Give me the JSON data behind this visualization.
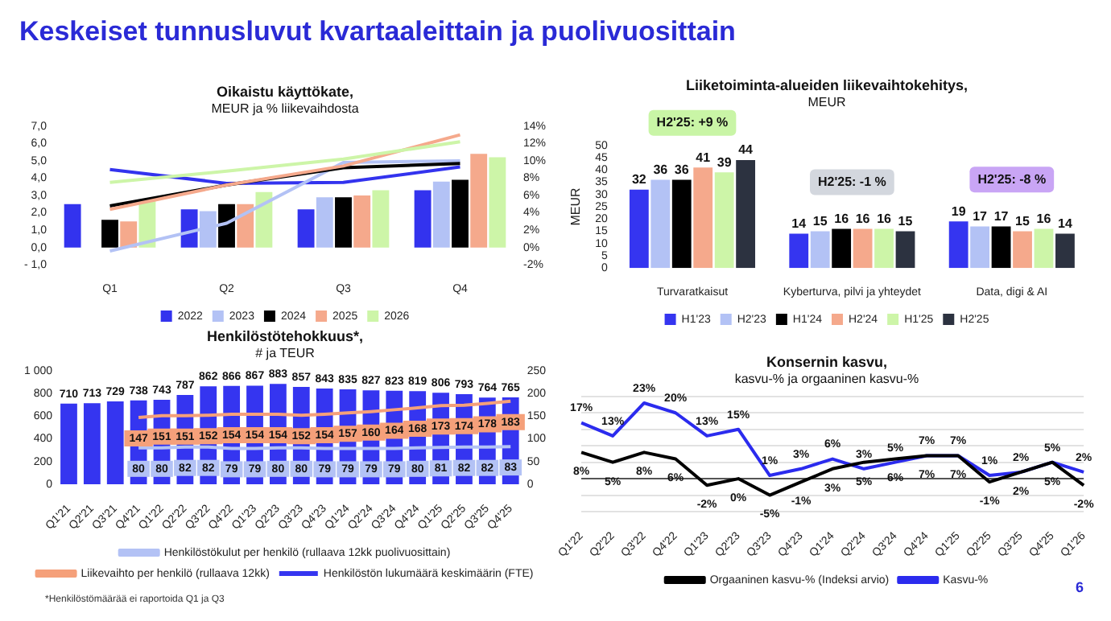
{
  "chart_data": [
    {
      "type": "bar",
      "title": "Oikaistu käyttökate,",
      "subtitle": "MEUR ja % liikevaihdosta",
      "categories": [
        "Q1",
        "Q2",
        "Q3",
        "Q4"
      ],
      "series": [
        {
          "name": "2022",
          "color": "#3333ee",
          "values": [
            2.5,
            2.2,
            2.2,
            3.3
          ]
        },
        {
          "name": "2023",
          "color": "#b3c2f5",
          "values": [
            null,
            2.1,
            2.9,
            3.8
          ]
        },
        {
          "name": "2024",
          "color": "#000000",
          "values": [
            1.6,
            2.5,
            2.9,
            3.9
          ]
        },
        {
          "name": "2025",
          "color": "#f5a98c",
          "values": [
            1.5,
            2.5,
            3.0,
            5.4
          ]
        },
        {
          "name": "2026",
          "color": "#cdf5a8",
          "values": [
            2.7,
            3.2,
            3.3,
            5.2
          ]
        },
        {
          "type": "line",
          "axis": "y2",
          "color": "#3333ee",
          "values": [
            9,
            7.4,
            7.5,
            9.3
          ]
        },
        {
          "type": "line",
          "axis": "y2",
          "color": "#b3c2f5",
          "values": [
            -0.4,
            2.8,
            9.8,
            10
          ]
        },
        {
          "type": "line",
          "axis": "y2",
          "color": "#000000",
          "values": [
            4.8,
            7.2,
            9.2,
            9.7
          ]
        },
        {
          "type": "line",
          "axis": "y2",
          "color": "#f5a98c",
          "values": [
            4.4,
            7.2,
            9.4,
            13
          ]
        },
        {
          "type": "line",
          "axis": "y2",
          "color": "#cdf5a8",
          "values": [
            7.5,
            8.8,
            10.2,
            12.2
          ]
        }
      ],
      "ylim": [
        -1,
        7
      ],
      "yticks": [
        {
          "value": -1,
          "label": "- 1,0"
        },
        {
          "value": 0,
          "label": "0,0"
        },
        {
          "value": 1,
          "label": "1,0"
        },
        {
          "value": 2,
          "label": "2,0"
        },
        {
          "value": 3,
          "label": "3,0"
        },
        {
          "value": 4,
          "label": "4,0"
        },
        {
          "value": 5,
          "label": "5,0"
        },
        {
          "value": 6,
          "label": "6,0"
        },
        {
          "value": 7,
          "label": "7,0"
        }
      ],
      "y2lim": [
        -2,
        14
      ],
      "y2ticks": [
        {
          "value": -2,
          "label": "-2%"
        },
        {
          "value": 0,
          "label": "0%"
        },
        {
          "value": 2,
          "label": "2%"
        },
        {
          "value": 4,
          "label": "4%"
        },
        {
          "value": 6,
          "label": "6%"
        },
        {
          "value": 8,
          "label": "8%"
        },
        {
          "value": 10,
          "label": "10%"
        },
        {
          "value": 12,
          "label": "12%"
        },
        {
          "value": 14,
          "label": "14%"
        }
      ],
      "legend": "bottom",
      "marker": "none",
      "annotations": [
        "Keskeiset tunnusluvut kvartaaleittain ja puolivuosittain"
      ]
    },
    {
      "type": "bar",
      "title": "Liiketoiminta-alueiden liikevaihtokehitys,",
      "subtitle": "MEUR",
      "ylabel": "MEUR",
      "categories": [
        "Turvaratkaisut",
        "Kyberturva, pilvi ja yhteydet",
        "Data, digi & AI"
      ],
      "series": [
        {
          "name": "H1'23",
          "color": "#3535f0",
          "values": [
            32,
            14,
            19
          ]
        },
        {
          "name": "H2'23",
          "color": "#b3c2f5",
          "values": [
            36,
            15,
            17
          ]
        },
        {
          "name": "H1'24",
          "color": "#000000",
          "values": [
            36,
            16,
            17
          ]
        },
        {
          "name": "H2'24",
          "color": "#f5a98c",
          "values": [
            41,
            16,
            15
          ]
        },
        {
          "name": "H1'25",
          "color": "#cdf5a8",
          "values": [
            39,
            16,
            16
          ]
        },
        {
          "name": "H2'25",
          "color": "#2c3240",
          "values": [
            44,
            15,
            14
          ]
        }
      ],
      "ylim": [
        0,
        50
      ],
      "yticks": [
        0,
        5,
        10,
        15,
        20,
        25,
        30,
        35,
        40,
        45,
        50
      ],
      "data_labels": true,
      "legend": "bottom",
      "annotations": [
        "H2'25: +9 %",
        "H2'25: -1 %",
        "H2'25: -8 %"
      ]
    },
    {
      "type": "bar",
      "title": "Henkilöstötehokkuus*,",
      "subtitle": "# ja TEUR",
      "categories": [
        "Q1'21",
        "Q2'21",
        "Q3'21",
        "Q4'21",
        "Q1'22",
        "Q2'22",
        "Q3'22",
        "Q4'22",
        "Q1'23",
        "Q2'23",
        "Q3'23",
        "Q4'23",
        "Q1'24",
        "Q2'24",
        "Q3'24",
        "Q4'24",
        "Q1'25",
        "Q2'25",
        "Q3'25",
        "Q4'25"
      ],
      "series": [
        {
          "name": "Henkilöstön lukumäärä keskimäärin (FTE)",
          "color": "#3535f0",
          "values": [
            710,
            713,
            729,
            738,
            743,
            787,
            862,
            866,
            867,
            883,
            857,
            843,
            835,
            827,
            823,
            819,
            806,
            793,
            764,
            765
          ]
        },
        {
          "type": "line",
          "axis": "y2",
          "name": "Liikevaihto per henkilö (rullaava 12kk)",
          "color": "#f5a07a",
          "values": [
            null,
            null,
            null,
            147,
            151,
            151,
            152,
            154,
            154,
            154,
            152,
            154,
            157,
            160,
            164,
            168,
            173,
            174,
            178,
            183
          ]
        },
        {
          "type": "line",
          "axis": "y2",
          "name": "Henkilöstökulut per henkilö (rullaava 12kk puolivuosittain)",
          "color": "#b3c2f5",
          "values": [
            null,
            null,
            null,
            80,
            80,
            82,
            82,
            79,
            79,
            80,
            80,
            79,
            79,
            79,
            79,
            80,
            81,
            82,
            82,
            83
          ]
        }
      ],
      "ylim": [
        0,
        1000
      ],
      "yticks": [
        0,
        200,
        400,
        600,
        800,
        {
          "value": 1000,
          "label": "1 000"
        }
      ],
      "y2lim": [
        0,
        250
      ],
      "y2ticks": [
        0,
        50,
        100,
        150,
        200,
        250
      ],
      "data_labels": true,
      "legend": "bottom",
      "marker": "none",
      "annotations": [
        "*Henkilöstömäärää ei raportoida Q1 ja Q3"
      ]
    },
    {
      "type": "line",
      "title": "Konsernin kasvu,",
      "subtitle": "kasvu-% ja orgaaninen kasvu-%",
      "categories": [
        "Q1'22",
        "Q2'22",
        "Q3'22",
        "Q4'22",
        "Q1'23",
        "Q2'23",
        "Q3'23",
        "Q4'23",
        "Q1'24",
        "Q2'24",
        "Q3'24",
        "Q4'24",
        "Q1'25",
        "Q2'25",
        "Q3'25",
        "Q4'25",
        "Q1'26"
      ],
      "series": [
        {
          "name": "Kasvu-%",
          "color": "#2b2bee",
          "values": [
            17,
            13,
            23,
            20,
            13,
            15,
            1,
            3,
            6,
            3,
            5,
            7,
            7,
            1,
            2,
            5,
            2
          ],
          "value_labels": [
            "17%",
            "13%",
            "23%",
            "20%",
            "13%",
            "15%",
            "1%",
            "3%",
            "6%",
            "3%",
            "5%",
            "7%",
            "7%",
            "1%",
            "2%",
            "5%",
            "2%"
          ]
        },
        {
          "name": "Orgaaninen kasvu-% (Indeksi arvio)",
          "color": "#000000",
          "values": [
            8,
            5,
            8,
            6,
            -2,
            0,
            -5,
            -1,
            3,
            5,
            6,
            7,
            7,
            -1,
            2,
            5,
            -2
          ],
          "value_labels": [
            "8%",
            "5%",
            "8%",
            "6%",
            "-2%",
            "0%",
            "-5%",
            "-1%",
            "3%",
            "5%",
            "6%",
            "7%",
            "7%",
            "-1%",
            "2%",
            "5%",
            "-2%"
          ]
        }
      ],
      "ylim": [
        -10,
        25
      ],
      "yticks": [
        {
          "value": -10,
          "label": null
        },
        {
          "value": -5,
          "label": null
        },
        {
          "value": 0,
          "label": null
        },
        {
          "value": 5,
          "label": null
        },
        {
          "value": 10,
          "label": null
        },
        {
          "value": 15,
          "label": null
        },
        {
          "value": 20,
          "label": null
        },
        {
          "value": 25,
          "label": null
        }
      ],
      "grid": "y",
      "tick_labels": "x",
      "legend": "bottom",
      "marker": "none",
      "annotations": [
        "6"
      ]
    }
  ]
}
